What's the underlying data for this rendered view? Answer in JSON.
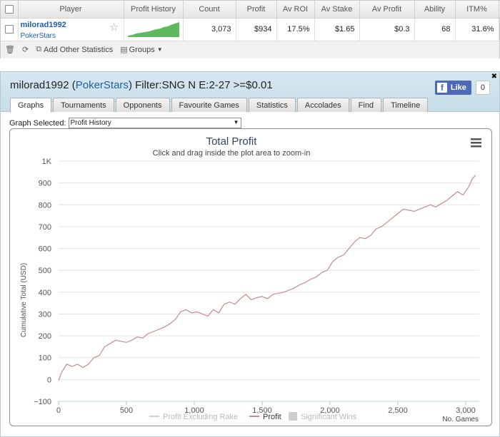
{
  "stats_table": {
    "headers": {
      "player": "Player",
      "profit_history": "Profit History",
      "count": "Count",
      "profit": "Profit",
      "av_roi": "Av ROI",
      "av_stake": "Av Stake",
      "av_profit": "Av Profit",
      "ability": "Ability",
      "itm": "ITM%"
    },
    "row": {
      "player_name": "milorad1992",
      "site": "PokerStars",
      "count": "3,073",
      "profit": "$934",
      "av_roi": "17.5%",
      "av_stake": "$1.65",
      "av_profit": "$0.3",
      "ability": "68",
      "itm": "31.6%",
      "remove": "x"
    },
    "toolbar": {
      "add_stats": "Add Other Statistics",
      "groups": "Groups"
    }
  },
  "panel": {
    "title_player": "milorad1992",
    "title_open": " (",
    "title_site": "PokerStars",
    "title_filter": ") Filter:SNG N E:2-27 >=$0.01",
    "fb_like": "Like",
    "fb_count": "0",
    "close": "✖",
    "tabs": [
      "Graphs",
      "Tournaments",
      "Opponents",
      "Favourite Games",
      "Statistics",
      "Accolades",
      "Find",
      "Timeline"
    ],
    "active_tab": 0,
    "graph_selected_label": "Graph Selected:",
    "graph_selected_value": "Profit History"
  },
  "chart_data": {
    "type": "line",
    "title": "Total Profit",
    "subtitle": "Click and drag inside the plot area to zoom-in",
    "ylabel": "Cumulative Total (USD)",
    "xlabel": "No. Games",
    "xlim": [
      0,
      3100
    ],
    "ylim": [
      -100,
      1000
    ],
    "xticks": [
      0,
      500,
      1000,
      1500,
      2000,
      2500,
      3000
    ],
    "xtick_labels": [
      "0",
      "500",
      "1,000",
      "1,500",
      "2,000",
      "2,500",
      "3,000"
    ],
    "yticks": [
      -100,
      0,
      100,
      200,
      300,
      400,
      500,
      600,
      700,
      800,
      900,
      1000
    ],
    "ytick_labels": [
      "−100",
      "0",
      "100",
      "200",
      "300",
      "400",
      "500",
      "600",
      "700",
      "800",
      "900",
      "1K"
    ],
    "grid": true,
    "legend": [
      "Profit Excluding Rake",
      "Profit",
      "Significant Wins"
    ],
    "legend_placement": "bottom-center",
    "series_color": "#c98a8a",
    "series": [
      {
        "name": "Profit",
        "x": [
          0,
          20,
          40,
          60,
          80,
          100,
          140,
          180,
          220,
          260,
          300,
          340,
          380,
          420,
          460,
          500,
          540,
          580,
          620,
          660,
          700,
          740,
          780,
          820,
          860,
          900,
          940,
          980,
          1020,
          1060,
          1100,
          1140,
          1180,
          1220,
          1260,
          1300,
          1340,
          1380,
          1420,
          1460,
          1500,
          1540,
          1580,
          1620,
          1660,
          1700,
          1740,
          1780,
          1820,
          1860,
          1900,
          1940,
          1980,
          2020,
          2060,
          2100,
          2140,
          2180,
          2220,
          2260,
          2300,
          2340,
          2380,
          2420,
          2460,
          2500,
          2540,
          2580,
          2620,
          2660,
          2700,
          2740,
          2780,
          2820,
          2860,
          2900,
          2940,
          2980,
          3020,
          3050,
          3073
        ],
        "y": [
          -5,
          30,
          50,
          70,
          65,
          60,
          70,
          55,
          70,
          100,
          110,
          150,
          165,
          180,
          175,
          170,
          180,
          195,
          190,
          210,
          220,
          230,
          240,
          255,
          275,
          310,
          320,
          305,
          310,
          300,
          290,
          320,
          305,
          345,
          355,
          345,
          370,
          390,
          365,
          375,
          380,
          370,
          390,
          395,
          400,
          410,
          420,
          435,
          445,
          460,
          470,
          490,
          500,
          540,
          560,
          570,
          600,
          630,
          650,
          645,
          660,
          690,
          700,
          720,
          740,
          760,
          780,
          775,
          770,
          780,
          790,
          800,
          790,
          805,
          820,
          840,
          860,
          845,
          880,
          920,
          935
        ]
      }
    ]
  }
}
